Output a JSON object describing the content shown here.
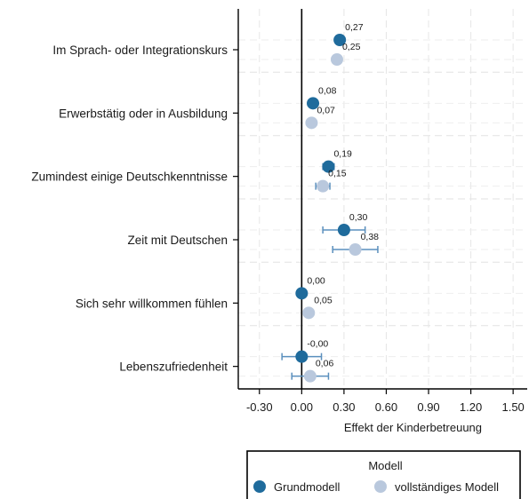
{
  "chart_data": {
    "type": "scatter",
    "orientation": "horizontal",
    "categories": [
      "Im Sprach- oder Integrationskurs",
      "Erwerbstätig oder in Ausbildung",
      "Zumindest einige Deutschkenntnisse",
      "Zeit mit Deutschen",
      "Sich sehr willkommen fühlen",
      "Lebenszufriedenheit"
    ],
    "series": [
      {
        "name": "Grundmodell",
        "color": "#1f6b9c",
        "values": [
          0.27,
          0.08,
          0.19,
          0.3,
          0.0,
          0.0
        ],
        "value_labels": [
          "0,27",
          "0,08",
          "0,19",
          "0,30",
          "0,00",
          "-0,00"
        ],
        "ci": [
          [
            0.27,
            0.27
          ],
          [
            0.08,
            0.08
          ],
          [
            0.15,
            0.23
          ],
          [
            0.15,
            0.45
          ],
          [
            0.0,
            0.0
          ],
          [
            -0.14,
            0.14
          ]
        ]
      },
      {
        "name": "vollständiges Modell",
        "color": "#b9c8dd",
        "values": [
          0.25,
          0.07,
          0.15,
          0.38,
          0.05,
          0.06
        ],
        "value_labels": [
          "0,25",
          "0,07",
          "0,15",
          "0,38",
          "0,05",
          "0,06"
        ],
        "ci": [
          [
            0.23,
            0.27
          ],
          [
            0.07,
            0.07
          ],
          [
            0.1,
            0.2
          ],
          [
            0.22,
            0.54
          ],
          [
            0.05,
            0.05
          ],
          [
            -0.07,
            0.19
          ]
        ]
      }
    ],
    "xlim": [
      -0.45,
      1.6
    ],
    "xticks": [
      -0.3,
      0.0,
      0.3,
      0.6,
      0.9,
      1.2,
      1.5
    ],
    "xtick_labels": [
      "-0.30",
      "0.00",
      "0.30",
      "0.60",
      "0.90",
      "1.20",
      "1.50"
    ],
    "xlabel": "Effekt der Kinderbetreuung",
    "reference_line": 0,
    "grid": true,
    "legend": {
      "title": "Modell",
      "placement": "bottom"
    }
  }
}
